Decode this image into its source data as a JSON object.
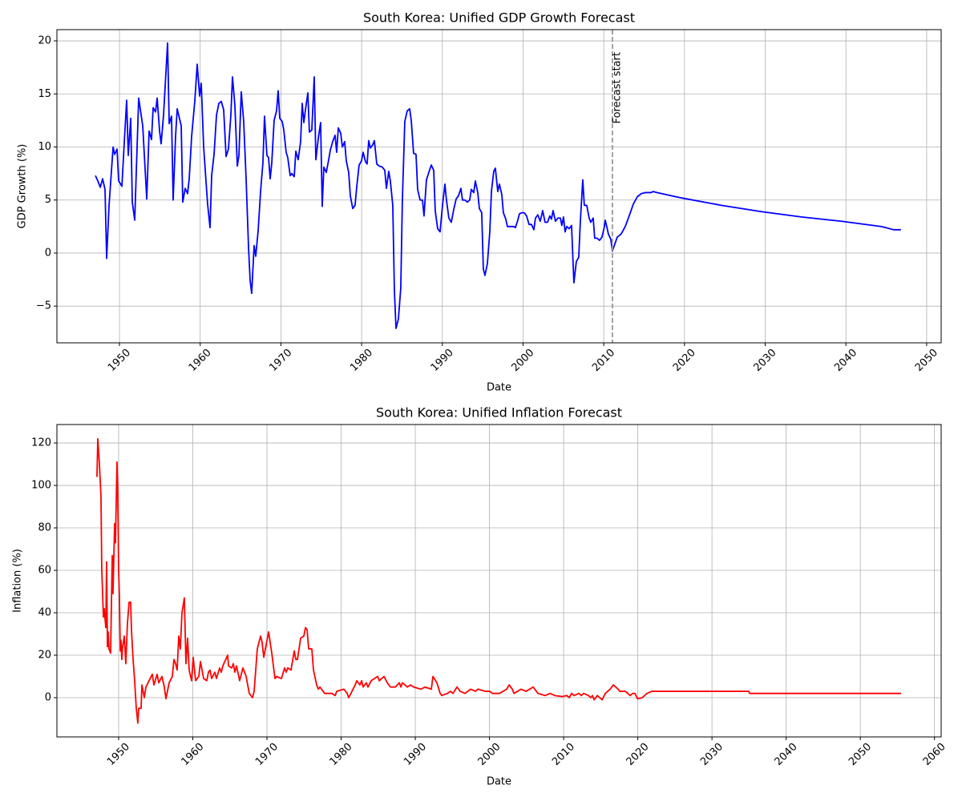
{
  "chart_data": [
    {
      "type": "line",
      "title": "South Korea: Unified GDP Growth Forecast",
      "x_label": "Date",
      "y_label": "GDP Growth (%)",
      "color": "#0000ff",
      "grid": true,
      "xlim": [
        1942.25,
        2051.8
      ],
      "ylim": [
        -8.46,
        21.06
      ],
      "xticks": [
        1950,
        1960,
        1970,
        1980,
        1990,
        2000,
        2010,
        2020,
        2030,
        2040,
        2050
      ],
      "yticks": [
        {
          "value": -5,
          "label": "−5"
        },
        0,
        5,
        10,
        15,
        20
      ],
      "vline": {
        "x": 2011.07,
        "label": "Forecast start"
      },
      "x": [
        1947.02,
        1947.32,
        1947.62,
        1947.91,
        1948.21,
        1948.41,
        1948.71,
        1949.21,
        1949.4,
        1949.7,
        1949.9,
        1950.3,
        1950.6,
        1950.89,
        1951.09,
        1951.39,
        1951.59,
        1951.89,
        1952.38,
        1952.88,
        1953.38,
        1953.67,
        1953.97,
        1954.17,
        1954.47,
        1954.67,
        1954.97,
        1955.16,
        1955.46,
        1955.96,
        1956.16,
        1956.45,
        1956.65,
        1956.95,
        1957.15,
        1957.65,
        1957.84,
        1958.14,
        1958.44,
        1958.64,
        1958.94,
        1959.33,
        1959.63,
        1959.93,
        1960.13,
        1960.43,
        1960.72,
        1960.92,
        1961.22,
        1961.42,
        1961.72,
        1962.02,
        1962.31,
        1962.61,
        1962.91,
        1963.21,
        1963.5,
        1963.8,
        1964.0,
        1964.3,
        1964.6,
        1964.8,
        1965.09,
        1965.39,
        1965.69,
        1965.99,
        1966.19,
        1966.38,
        1966.68,
        1966.88,
        1967.18,
        1967.48,
        1967.77,
        1967.97,
        1968.27,
        1968.47,
        1968.67,
        1968.87,
        1969.16,
        1969.46,
        1969.66,
        1969.86,
        1970.16,
        1970.36,
        1970.65,
        1970.85,
        1971.15,
        1971.35,
        1971.65,
        1971.85,
        1972.14,
        1972.44,
        1972.64,
        1972.84,
        1973.04,
        1973.34,
        1973.53,
        1973.83,
        1974.13,
        1974.33,
        1974.63,
        1974.92,
        1975.12,
        1975.32,
        1975.62,
        1975.92,
        1976.12,
        1976.41,
        1976.71,
        1976.91,
        1977.11,
        1977.41,
        1977.61,
        1977.9,
        1978.1,
        1978.4,
        1978.6,
        1978.9,
        1979.19,
        1979.39,
        1979.69,
        1979.99,
        1980.19,
        1980.49,
        1980.68,
        1980.88,
        1981.08,
        1981.38,
        1981.58,
        1981.88,
        1982.17,
        1982.57,
        1982.87,
        1983.07,
        1983.36,
        1983.56,
        1983.86,
        1984.06,
        1984.26,
        1984.56,
        1984.85,
        1985.05,
        1985.35,
        1985.65,
        1985.95,
        1986.15,
        1986.44,
        1986.74,
        1986.94,
        1987.24,
        1987.54,
        1987.73,
        1988.03,
        1988.33,
        1988.63,
        1988.93,
        1989.12,
        1989.42,
        1989.72,
        1990.02,
        1990.32,
        1990.51,
        1990.81,
        1991.11,
        1991.41,
        1991.71,
        1992.0,
        1992.3,
        1992.5,
        1992.8,
        1993.1,
        1993.39,
        1993.59,
        1993.89,
        1994.09,
        1994.39,
        1994.59,
        1994.88,
        1995.08,
        1995.28,
        1995.58,
        1995.88,
        1996.08,
        1996.37,
        1996.57,
        1996.87,
        1997.07,
        1997.37,
        1997.56,
        1997.86,
        1998.06,
        1998.56,
        1998.86,
        1999.05,
        1999.35,
        1999.55,
        1999.85,
        2000.15,
        2000.44,
        2000.74,
        2001.04,
        2001.34,
        2001.54,
        2001.83,
        2002.13,
        2002.43,
        2002.73,
        2003.03,
        2003.32,
        2003.52,
        2003.72,
        2004.02,
        2004.32,
        2004.62,
        2004.81,
        2005.01,
        2005.21,
        2005.41,
        2005.71,
        2006.01,
        2006.3,
        2006.6,
        2006.9,
        2007.1,
        2007.4,
        2007.59,
        2007.89,
        2008.19,
        2008.39,
        2008.69,
        2008.88,
        2009.18,
        2009.48,
        2009.78,
        2010.08,
        2010.18,
        2010.37,
        2010.57,
        2010.87,
        2011.07,
        2011.67,
        2012.16,
        2012.66,
        2013.15,
        2013.65,
        2014.15,
        2014.64,
        2015.14,
        2015.84,
        2016.13,
        2016.63,
        2019.61,
        2024.58,
        2029.54,
        2034.51,
        2039.47,
        2044.43,
        2045.92,
        2046.82
      ],
      "values": [
        7.3,
        6.8,
        6.2,
        7.0,
        6.0,
        -0.5,
        4.5,
        10.0,
        9.3,
        9.8,
        6.8,
        6.3,
        10.5,
        14.4,
        9.2,
        12.7,
        4.8,
        3.1,
        14.6,
        12.0,
        5.1,
        11.5,
        10.7,
        13.7,
        13.3,
        14.6,
        11.5,
        10.3,
        13,
        19.8,
        12.2,
        12.9,
        5.0,
        11,
        13.6,
        12.0,
        4.8,
        6.1,
        5.6,
        7.0,
        11,
        14.3,
        17.8,
        14.8,
        16.0,
        10,
        6.8,
        4.6,
        2.4,
        7.3,
        9.3,
        13,
        14.1,
        14.3,
        13.5,
        9.1,
        9.8,
        13,
        16.6,
        13.9,
        8.2,
        9.2,
        15.2,
        12.4,
        7,
        0.5,
        -2.6,
        -3.8,
        0.7,
        -0.3,
        2.1,
        5.8,
        8.5,
        12.9,
        9.2,
        9.0,
        7.0,
        8.5,
        12.5,
        13.4,
        15.3,
        12.7,
        12.4,
        11.6,
        9.5,
        9.0,
        7.3,
        7.5,
        7.2,
        9.6,
        8.8,
        10.5,
        14.1,
        12.3,
        13.5,
        15.1,
        11.4,
        11.6,
        16.6,
        8.8,
        10.8,
        12.3,
        4.4,
        8.1,
        7.6,
        8.8,
        9.7,
        10.5,
        11.1,
        9.5,
        11.8,
        11.3,
        10,
        10.5,
        8.7,
        7.6,
        5.4,
        4.2,
        4.5,
        6.2,
        8.3,
        8.7,
        9.5,
        8.6,
        8.4,
        10.6,
        9.9,
        10.2,
        10.6,
        8.4,
        8.2,
        8.1,
        7.8,
        6.1,
        7.7,
        6.8,
        4.5,
        -3.5,
        -7.1,
        -6.2,
        -3.3,
        5,
        12.4,
        13.4,
        13.6,
        12.5,
        9.4,
        9.3,
        6,
        5,
        5,
        3.5,
        6.9,
        7.6,
        8.3,
        7.8,
        4,
        2.3,
        2,
        4.5,
        6.5,
        5,
        3.3,
        2.9,
        4.1,
        5.1,
        5.4,
        6.1,
        5,
        5,
        4.8,
        5,
        6,
        5.7,
        6.8,
        5.7,
        4.2,
        3.8,
        -1.5,
        -2.1,
        -1,
        2,
        5.8,
        7.7,
        8,
        5.8,
        6.5,
        5.5,
        3.8,
        3.2,
        2.5,
        2.5,
        2.5,
        2.4,
        3.1,
        3.7,
        3.8,
        3.8,
        3.5,
        2.7,
        2.7,
        2.2,
        3.3,
        3.6,
        3,
        4,
        2.9,
        2.9,
        3.5,
        3.2,
        4,
        3,
        3.3,
        3.3,
        2.6,
        3.4,
        2,
        2.5,
        2.3,
        2.6,
        -2.8,
        -0.8,
        -0.4,
        3,
        6.9,
        4.5,
        4.5,
        3.3,
        2.9,
        3.3,
        1.4,
        1.4,
        1.2,
        1.5,
        2.5,
        3.1,
        2.5,
        1.8,
        1.3,
        0.2,
        1.5,
        1.8,
        2.5,
        3.5,
        4.6,
        5.3,
        5.6,
        5.7,
        5.7,
        5.8,
        5.7,
        5.2,
        4.5,
        3.9,
        3.4,
        3.0,
        2.5,
        2.2,
        2.2
      ]
    },
    {
      "type": "line",
      "title": "South Korea: Unified Inflation Forecast",
      "x_label": "Date",
      "y_label": "Inflation (%)",
      "color": "#ff0000",
      "grid": true,
      "xlim": [
        1941.68,
        2060.9
      ],
      "ylim": [
        -18.5,
        128.7
      ],
      "xticks": [
        1950,
        1960,
        1970,
        1980,
        1990,
        2000,
        2010,
        2020,
        2030,
        2040,
        2050,
        2060
      ],
      "yticks": [
        0,
        20,
        40,
        60,
        80,
        100,
        120
      ],
      "x": [
        1947.08,
        1947.19,
        1947.41,
        1947.62,
        1947.73,
        1947.95,
        1948.05,
        1948.27,
        1948.38,
        1948.49,
        1948.59,
        1948.7,
        1948.92,
        1949.14,
        1949.24,
        1949.46,
        1949.57,
        1949.78,
        1949.89,
        1950.0,
        1950.11,
        1950.22,
        1950.32,
        1950.43,
        1950.54,
        1950.76,
        1950.97,
        1951.19,
        1951.41,
        1951.62,
        1951.73,
        1951.95,
        1952.16,
        1952.38,
        1952.59,
        1952.7,
        1953.03,
        1953.14,
        1953.46,
        1953.68,
        1954.11,
        1954.54,
        1954.76,
        1955.19,
        1955.41,
        1955.84,
        1956.16,
        1956.38,
        1956.81,
        1957.24,
        1957.46,
        1957.68,
        1957.89,
        1958.11,
        1958.32,
        1958.54,
        1958.86,
        1959.08,
        1959.3,
        1959.51,
        1959.84,
        1960.05,
        1960.38,
        1960.81,
        1961.03,
        1961.46,
        1961.89,
        1962.11,
        1962.32,
        1962.54,
        1962.97,
        1963.19,
        1963.62,
        1963.84,
        1964.05,
        1964.7,
        1964.81,
        1965.24,
        1965.46,
        1965.68,
        1965.89,
        1966.32,
        1966.76,
        1967.19,
        1967.4,
        1967.62,
        1968.05,
        1968.27,
        1968.7,
        1969.14,
        1969.35,
        1969.57,
        1970.22,
        1970.65,
        1971.08,
        1971.3,
        1971.95,
        1972.38,
        1972.59,
        1972.81,
        1973.24,
        1973.68,
        1973.89,
        1974.11,
        1974.54,
        1974.97,
        1975.19,
        1975.41,
        1975.62,
        1976.05,
        1976.27,
        1976.7,
        1976.92,
        1977.14,
        1977.78,
        1978.32,
        1978.76,
        1979.19,
        1979.41,
        1980.38,
        1980.81,
        1981.03,
        1981.46,
        1981.89,
        1982.11,
        1982.54,
        1982.76,
        1982.97,
        1983.4,
        1983.62,
        1984.05,
        1984.49,
        1984.92,
        1985.14,
        1985.78,
        1986.22,
        1986.65,
        1987.3,
        1987.84,
        1988.05,
        1988.27,
        1988.92,
        1989.35,
        1989.78,
        1990.76,
        1991.3,
        1992.16,
        1992.38,
        1992.92,
        1993.35,
        1993.57,
        1994.32,
        1994.75,
        1995.08,
        1995.62,
        1996.05,
        1996.7,
        1997.46,
        1998.11,
        1998.43,
        1999.41,
        2000.05,
        2000.38,
        2001.35,
        2002.32,
        2002.65,
        2003.08,
        2003.3,
        2004.27,
        2004.92,
        2005.89,
        2006.32,
        2006.54,
        2007.51,
        2008.16,
        2008.81,
        2009.78,
        2010.43,
        2010.76,
        2011.08,
        2011.41,
        2012.05,
        2012.38,
        2012.7,
        2013.35,
        2013.67,
        2013.89,
        2014.11,
        2014.54,
        2015.19,
        2015.62,
        2016.27,
        2016.7,
        2017.35,
        2017.57,
        2018.32,
        2018.97,
        2019.3,
        2019.62,
        2019.95,
        2020.59,
        2021.24,
        2021.89,
        2022.65,
        2034.97,
        2035.08,
        2055.51
      ],
      "values": [
        104,
        122,
        110,
        95,
        60,
        38,
        42,
        33,
        64,
        24,
        31,
        23,
        21,
        67,
        49,
        82,
        73,
        111,
        95,
        60,
        47,
        22,
        27,
        18,
        24,
        29,
        16,
        35,
        45,
        45,
        32,
        18,
        8,
        -5,
        -12,
        -5,
        -5,
        6,
        0,
        5,
        8,
        11,
        6,
        11,
        7,
        10,
        5,
        -0.5,
        7,
        10,
        18,
        16,
        13,
        29,
        23,
        40,
        47,
        16,
        28,
        13,
        8,
        19,
        8,
        10,
        17,
        9,
        8,
        12,
        13,
        9,
        12,
        9,
        14,
        12,
        15,
        20,
        15,
        14,
        16,
        12,
        15,
        8,
        14,
        10,
        6,
        2,
        0,
        3,
        23,
        29,
        26,
        19,
        31,
        21,
        9,
        10,
        9,
        14,
        12,
        14,
        13,
        22,
        18,
        18,
        28,
        29,
        33,
        32,
        23,
        23,
        13,
        6,
        4,
        5,
        2,
        2,
        2,
        1,
        3,
        4,
        2,
        0,
        3,
        6,
        8,
        6,
        8,
        5,
        7,
        5,
        8,
        9,
        10,
        8,
        10,
        7,
        5,
        5,
        7,
        5,
        7,
        5,
        6,
        5,
        4,
        5,
        4,
        10,
        7,
        2,
        1,
        2,
        3,
        2,
        5,
        3,
        2,
        4,
        3,
        4,
        3,
        3,
        2,
        2,
        4,
        6,
        4,
        2,
        4,
        3,
        5,
        3,
        2,
        1,
        2,
        1,
        0.5,
        1,
        0,
        2,
        1,
        2,
        1,
        2,
        1,
        0,
        1,
        -1,
        1,
        -1,
        2,
        4,
        6,
        4,
        3,
        3,
        1,
        2,
        2,
        -0.5,
        0,
        2,
        3,
        3,
        3,
        2,
        2
      ]
    }
  ]
}
